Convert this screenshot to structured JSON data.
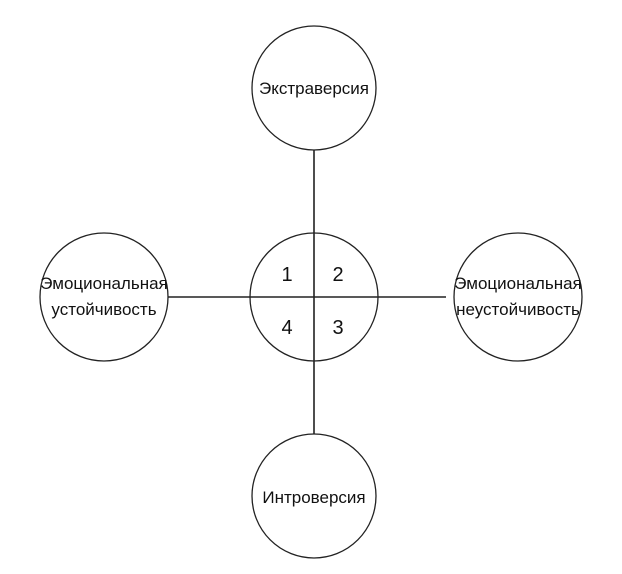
{
  "colors": {
    "stroke": "#222222",
    "text": "#111111",
    "background": "#ffffff"
  },
  "nodes": {
    "top": {
      "lines": [
        "Экстраверсия"
      ]
    },
    "bottom": {
      "lines": [
        "Интроверсия"
      ]
    },
    "left": {
      "lines": [
        "Эмоциональная",
        "устойчивость"
      ]
    },
    "right": {
      "lines": [
        "Эмоциональная",
        "неустойчивость"
      ]
    }
  },
  "quadrants": {
    "q1": "1",
    "q2": "2",
    "q3": "3",
    "q4": "4"
  }
}
